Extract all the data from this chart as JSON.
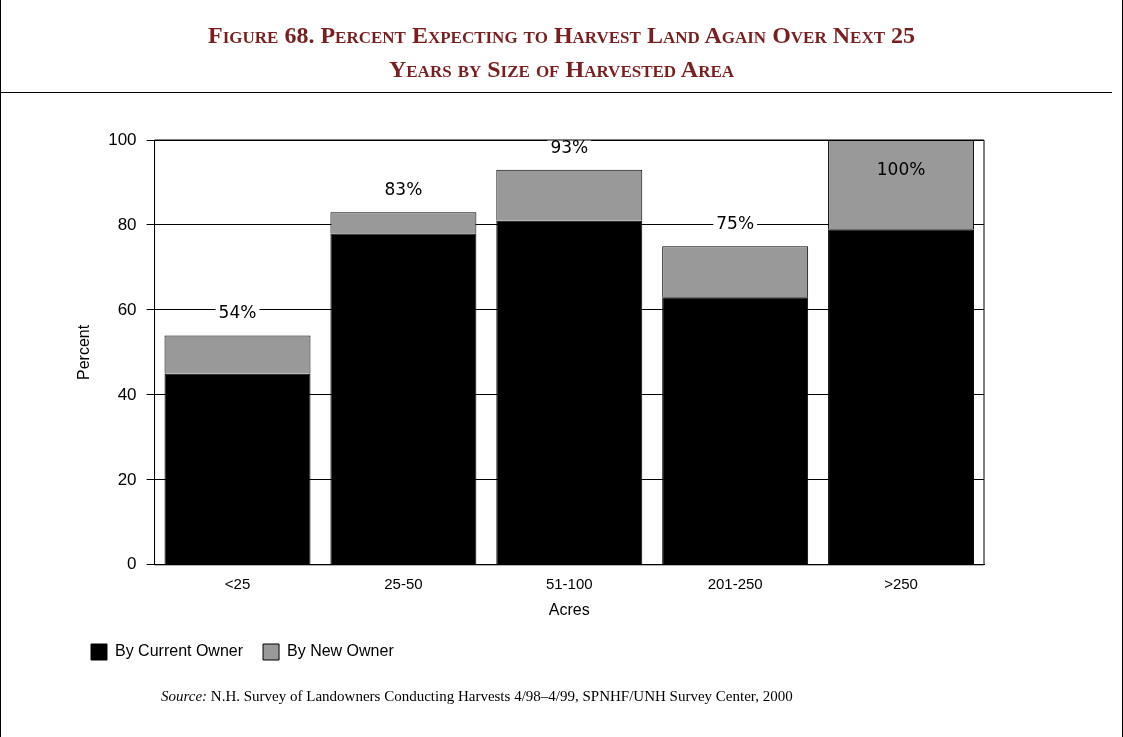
{
  "chart_data": {
    "type": "bar",
    "title": "Figure 68. Percent Expecting to Harvest Land Again Over Next 25 Years by Size of Harvested Area",
    "xlabel": "Acres",
    "ylabel": "Percent",
    "categories": [
      "<25",
      "25-50",
      "51-100",
      "201-250",
      ">250"
    ],
    "stacked": true,
    "series": [
      {
        "name": "By Current Owner",
        "color": "#000000",
        "values": [
          45,
          78,
          81,
          63,
          79
        ]
      },
      {
        "name": "By New Owner",
        "color": "#999999",
        "values": [
          9,
          5,
          12,
          12,
          21
        ]
      }
    ],
    "totals": [
      "54%",
      "83%",
      "93%",
      "75%",
      "100%"
    ],
    "ylim": [
      0,
      100
    ],
    "yticks": [
      0,
      20,
      40,
      60,
      80,
      100
    ],
    "grid": "y",
    "legend": "bottom left",
    "annotations": [
      "Source: N.H. Survey of Landowners Conducting Harvests 4/98–4/99, SPNHF/UNH Survey Center, 2000"
    ]
  }
}
